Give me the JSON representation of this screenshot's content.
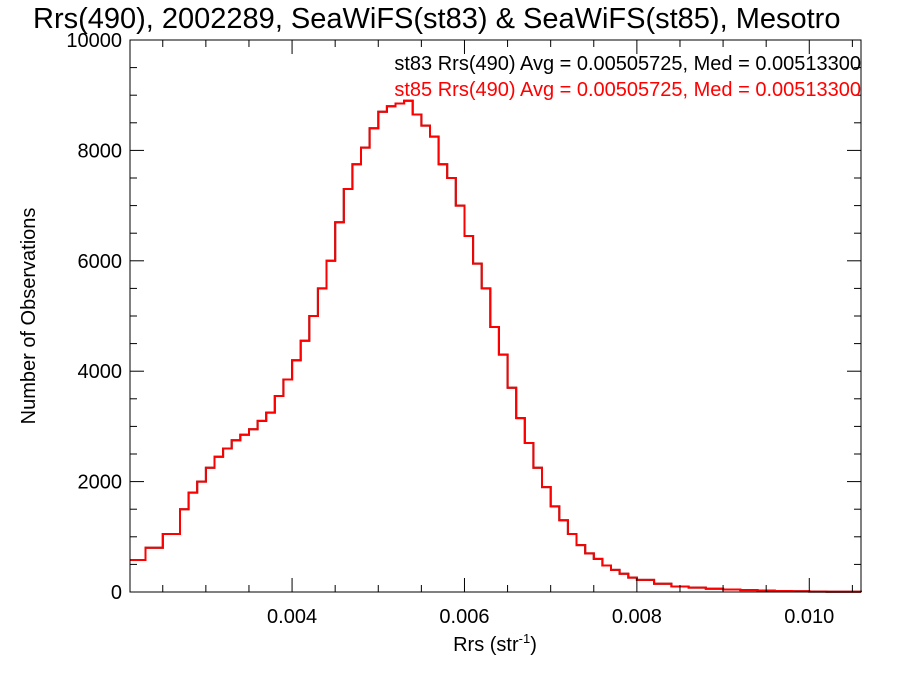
{
  "chart_data": {
    "type": "line",
    "style": "step-histogram",
    "title": "Rrs(490), 2002289, SeaWiFS(st83) & SeaWiFS(st85), Mesotro",
    "xlabel_base": "Rrs (str",
    "xlabel_sup": "-1",
    "xlabel_close": ")",
    "ylabel": "Number of Observations",
    "xlim": [
      0.00212,
      0.0106
    ],
    "ylim": [
      0,
      10000
    ],
    "x_ticks": [
      0.004,
      0.006,
      0.008,
      0.01
    ],
    "x_tick_labels": [
      "0.004",
      "0.006",
      "0.008",
      "0.010"
    ],
    "y_ticks": [
      0,
      2000,
      4000,
      6000,
      8000,
      10000
    ],
    "y_tick_labels": [
      "0",
      "2000",
      "4000",
      "6000",
      "8000",
      "10000"
    ],
    "grid": false,
    "legend_placement": "top-right",
    "annotations": [
      {
        "text": "st83 Rrs(490) Avg = 0.00505725, Med = 0.00513300",
        "color": "#000000"
      },
      {
        "text": "st85 Rrs(490) Avg = 0.00505725, Med = 0.00513300",
        "color": "#ff0000"
      }
    ],
    "series": [
      {
        "name": "st83",
        "color": "#000000",
        "x": [
          0.00212,
          0.0023,
          0.0025,
          0.0027,
          0.0028,
          0.0029,
          0.003,
          0.0031,
          0.0032,
          0.0033,
          0.0034,
          0.0035,
          0.0036,
          0.0037,
          0.0038,
          0.0039,
          0.004,
          0.0041,
          0.0042,
          0.0043,
          0.0044,
          0.0045,
          0.0046,
          0.0047,
          0.0048,
          0.0049,
          0.005,
          0.0051,
          0.0052,
          0.0053,
          0.0054,
          0.0055,
          0.0056,
          0.0057,
          0.0058,
          0.0059,
          0.006,
          0.0061,
          0.0062,
          0.0063,
          0.0064,
          0.0065,
          0.0066,
          0.0067,
          0.0068,
          0.0069,
          0.007,
          0.0071,
          0.0072,
          0.0073,
          0.0074,
          0.0075,
          0.0076,
          0.0077,
          0.0078,
          0.0079,
          0.008,
          0.0082,
          0.0084,
          0.0086,
          0.0088,
          0.009,
          0.0092,
          0.0094,
          0.0096,
          0.0098,
          0.01,
          0.0102,
          0.0104,
          0.0106
        ],
        "y": [
          580,
          800,
          1050,
          1500,
          1800,
          2000,
          2250,
          2450,
          2600,
          2750,
          2850,
          2950,
          3100,
          3250,
          3550,
          3850,
          4200,
          4550,
          5000,
          5500,
          6000,
          6700,
          7300,
          7750,
          8050,
          8400,
          8700,
          8800,
          8850,
          8900,
          8650,
          8450,
          8250,
          7750,
          7500,
          7000,
          6450,
          5950,
          5500,
          4800,
          4300,
          3700,
          3150,
          2700,
          2250,
          1900,
          1550,
          1300,
          1050,
          850,
          700,
          600,
          480,
          400,
          330,
          260,
          220,
          150,
          100,
          80,
          60,
          45,
          35,
          25,
          18,
          12,
          8,
          5,
          3,
          2
        ]
      },
      {
        "name": "st85",
        "color": "#ff0000",
        "x": [
          0.00212,
          0.0023,
          0.0025,
          0.0027,
          0.0028,
          0.0029,
          0.003,
          0.0031,
          0.0032,
          0.0033,
          0.0034,
          0.0035,
          0.0036,
          0.0037,
          0.0038,
          0.0039,
          0.004,
          0.0041,
          0.0042,
          0.0043,
          0.0044,
          0.0045,
          0.0046,
          0.0047,
          0.0048,
          0.0049,
          0.005,
          0.0051,
          0.0052,
          0.0053,
          0.0054,
          0.0055,
          0.0056,
          0.0057,
          0.0058,
          0.0059,
          0.006,
          0.0061,
          0.0062,
          0.0063,
          0.0064,
          0.0065,
          0.0066,
          0.0067,
          0.0068,
          0.0069,
          0.007,
          0.0071,
          0.0072,
          0.0073,
          0.0074,
          0.0075,
          0.0076,
          0.0077,
          0.0078,
          0.0079,
          0.008,
          0.0082,
          0.0084,
          0.0086,
          0.0088,
          0.009,
          0.0092,
          0.0094,
          0.0096,
          0.0098,
          0.01,
          0.0102,
          0.0104,
          0.0106
        ],
        "y": [
          580,
          800,
          1050,
          1500,
          1800,
          2000,
          2250,
          2450,
          2600,
          2750,
          2850,
          2950,
          3100,
          3250,
          3550,
          3850,
          4200,
          4550,
          5000,
          5500,
          6000,
          6700,
          7300,
          7750,
          8050,
          8400,
          8700,
          8800,
          8850,
          8900,
          8650,
          8450,
          8250,
          7750,
          7500,
          7000,
          6450,
          5950,
          5500,
          4800,
          4300,
          3700,
          3150,
          2700,
          2250,
          1900,
          1550,
          1300,
          1050,
          850,
          700,
          600,
          480,
          400,
          330,
          260,
          220,
          150,
          100,
          80,
          60,
          45,
          35,
          25,
          18,
          12,
          8,
          5,
          3,
          2
        ]
      }
    ]
  }
}
